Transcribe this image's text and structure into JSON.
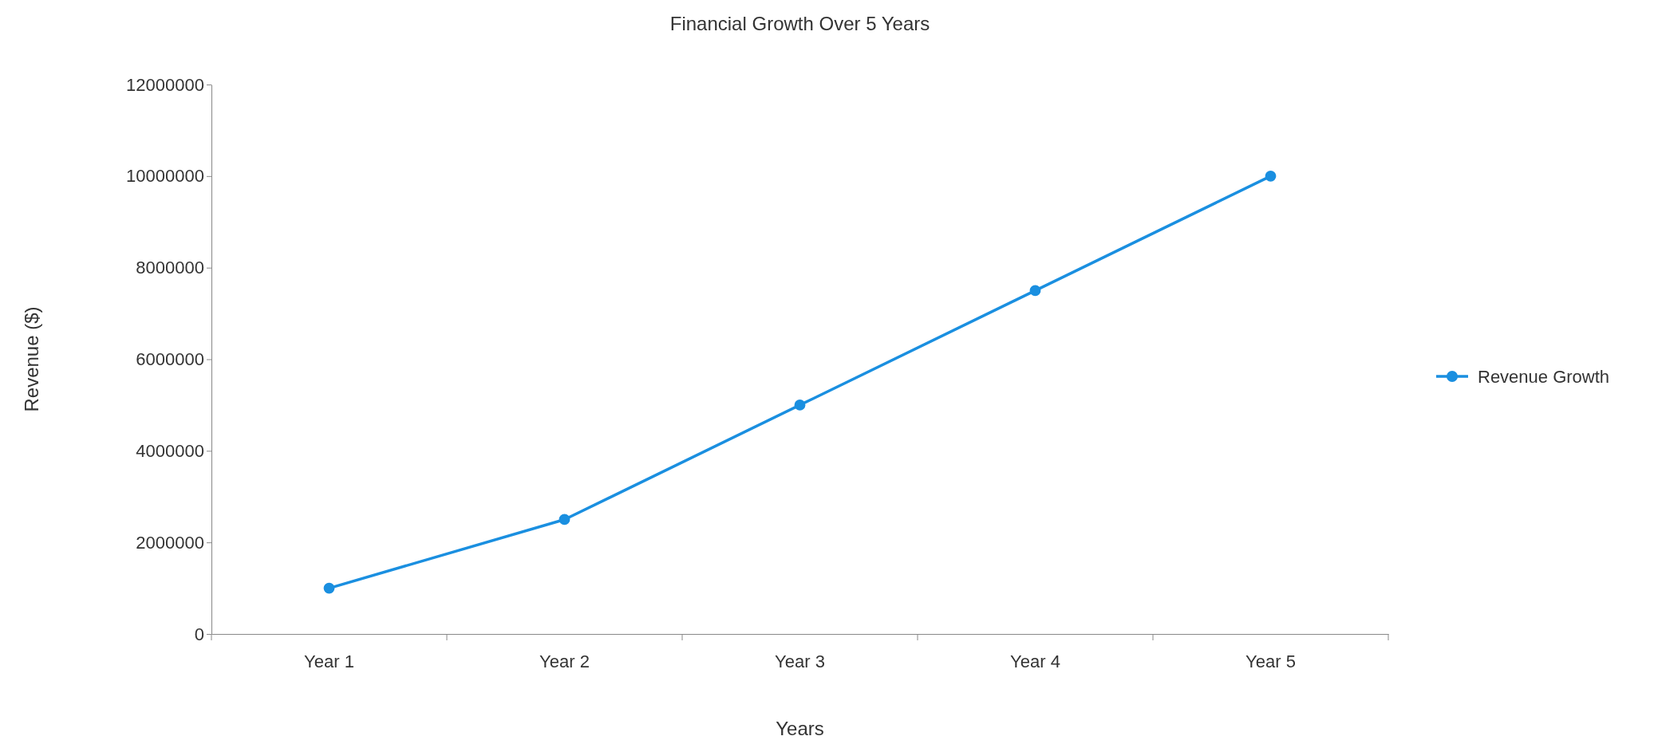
{
  "chart_data": {
    "type": "line",
    "title": "Financial Growth Over 5 Years",
    "xlabel": "Years",
    "ylabel": "Revenue ($)",
    "categories": [
      "Year 1",
      "Year 2",
      "Year 3",
      "Year 4",
      "Year 5"
    ],
    "series": [
      {
        "name": "Revenue Growth",
        "color": "#1a8fe0",
        "values": [
          1000000,
          2500000,
          5000000,
          7500000,
          10000000
        ]
      }
    ],
    "ylim": [
      0,
      12000000
    ],
    "yticks": [
      0,
      2000000,
      4000000,
      6000000,
      8000000,
      10000000,
      12000000
    ],
    "grid": false,
    "legend": "right",
    "marker": "circle",
    "line_style": "solid"
  }
}
